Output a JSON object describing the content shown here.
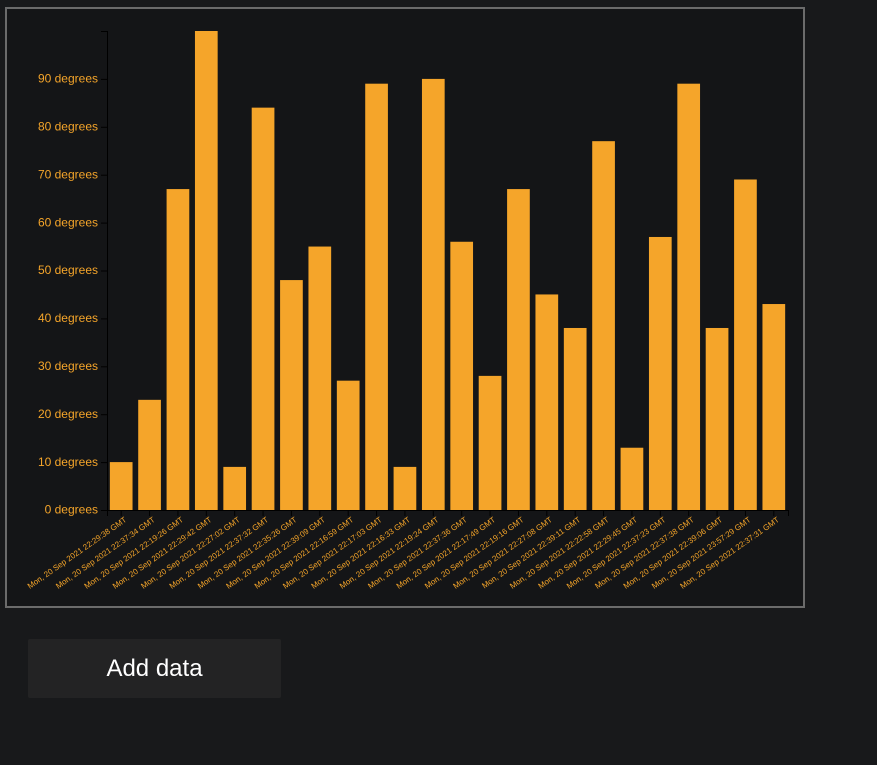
{
  "colors": {
    "bar": "#f5a52a",
    "axis": "#000000",
    "tick_text": "#f5a52a",
    "background": "#18191b"
  },
  "button": {
    "add_label": "Add data"
  },
  "chart_data": {
    "type": "bar",
    "ylim": [
      0,
      100
    ],
    "y_ticks": [
      0,
      10,
      20,
      30,
      40,
      50,
      60,
      70,
      80,
      90
    ],
    "y_tick_suffix": " degrees",
    "y_tick_labels": [
      "0 degrees",
      "10 degrees",
      "20 degrees",
      "30 degrees",
      "40 degrees",
      "50 degrees",
      "60 degrees",
      "70 degrees",
      "80 degrees",
      "90 degrees"
    ],
    "grid": false,
    "categories": [
      "Mon, 20 Sep 2021 22:29:38 GMT",
      "Mon, 20 Sep 2021 22:37:34 GMT",
      "Mon, 20 Sep 2021 22:19:26 GMT",
      "Mon, 20 Sep 2021 22:29:42 GMT",
      "Mon, 20 Sep 2021 22:27:02 GMT",
      "Mon, 20 Sep 2021 22:37:32 GMT",
      "Mon, 20 Sep 2021 22:35:26 GMT",
      "Mon, 20 Sep 2021 22:39:09 GMT",
      "Mon, 20 Sep 2021 22:16:59 GMT",
      "Mon, 20 Sep 2021 22:17:03 GMT",
      "Mon, 20 Sep 2021 22:16:33 GMT",
      "Mon, 20 Sep 2021 22:19:24 GMT",
      "Mon, 20 Sep 2021 22:37:36 GMT",
      "Mon, 20 Sep 2021 22:17:49 GMT",
      "Mon, 20 Sep 2021 22:19:16 GMT",
      "Mon, 20 Sep 2021 22:27:08 GMT",
      "Mon, 20 Sep 2021 22:39:11 GMT",
      "Mon, 20 Sep 2021 22:22:58 GMT",
      "Mon, 20 Sep 2021 22:29:45 GMT",
      "Mon, 20 Sep 2021 22:37:23 GMT",
      "Mon, 20 Sep 2021 22:37:38 GMT",
      "Mon, 20 Sep 2021 22:39:06 GMT",
      "Mon, 20 Sep 2021 23:57:29 GMT",
      "Mon, 20 Sep 2021 22:37:31 GMT"
    ],
    "values": [
      10,
      23,
      67,
      100,
      9,
      84,
      48,
      55,
      27,
      89,
      9,
      90,
      56,
      28,
      67,
      45,
      38,
      77,
      13,
      57,
      89,
      38,
      69,
      43
    ]
  }
}
